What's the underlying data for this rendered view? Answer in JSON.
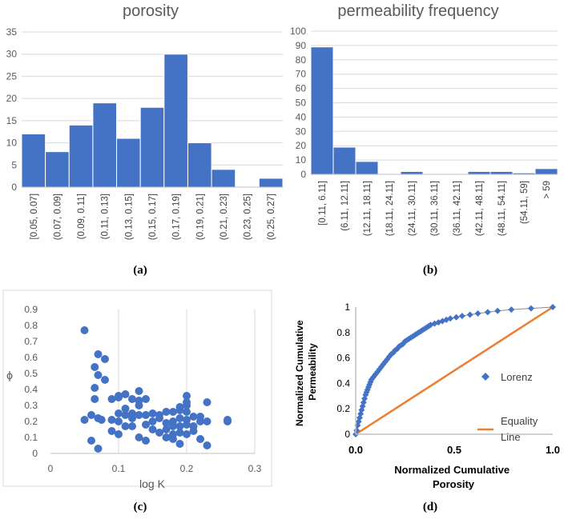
{
  "colors": {
    "bar": "#4472C4",
    "barEdge": "#ffffff",
    "axis": "#bfbfbf",
    "grid": "#d9d9d9",
    "text": "#404040",
    "muted": "#595959",
    "orange": "#ED7D31",
    "black": "#000000"
  },
  "captions": {
    "a": "(a)",
    "b": "(b)",
    "c": "(c)",
    "d": "(d)"
  },
  "chart_data": [
    {
      "id": "a",
      "type": "bar",
      "title": "porosity",
      "categories": [
        "[0.05, 0.07]",
        "(0.07, 0.09]",
        "(0.09, 0.11]",
        "(0.11, 0.13]",
        "(0.13, 0.15]",
        "(0.15, 0.17]",
        "(0.17, 0.19]",
        "(0.19, 0.21]",
        "(0.21, 0.23]",
        "(0.23, 0.25]",
        "(0.25, 0.27]"
      ],
      "values": [
        12,
        8,
        14,
        19,
        11,
        18,
        30,
        10,
        4,
        0,
        2
      ],
      "ylim": [
        0,
        35
      ],
      "yticks": [
        "0",
        "5",
        "10",
        "15",
        "20",
        "25",
        "30",
        "35"
      ]
    },
    {
      "id": "b",
      "type": "bar",
      "title": "permeability frequency",
      "categories": [
        "[0.11, 6.11]",
        "(6.11, 12.11]",
        "(12.11, 18.11]",
        "(18.11, 24.11]",
        "(24.11, 30.11]",
        "(30.11, 36.11]",
        "(36.11, 42.11]",
        "(42.11, 48.11]",
        "(48.11, 54.11]",
        "(54.11, 59]",
        "> 59"
      ],
      "values": [
        89,
        19,
        9,
        0,
        2,
        0,
        0,
        2,
        2,
        1,
        4
      ],
      "ylim": [
        0,
        100
      ],
      "yticks": [
        "0",
        "10",
        "20",
        "30",
        "40",
        "50",
        "60",
        "70",
        "80",
        "90",
        "100"
      ]
    },
    {
      "id": "c",
      "type": "scatter",
      "xlabel": "log K",
      "ylabel": "ϕ",
      "xlim": [
        0,
        0.3
      ],
      "ylim": [
        0,
        0.9
      ],
      "xticks": [
        "0",
        "0.1",
        "0.2",
        "0.3"
      ],
      "yticks": [
        "0",
        "0.1",
        "0.2",
        "0.3",
        "0.4",
        "0.5",
        "0.6",
        "0.7",
        "0.8",
        "0.9"
      ],
      "points": [
        [
          0.05,
          0.77
        ],
        [
          0.07,
          0.62
        ],
        [
          0.08,
          0.59
        ],
        [
          0.065,
          0.54
        ],
        [
          0.07,
          0.49
        ],
        [
          0.08,
          0.46
        ],
        [
          0.065,
          0.41
        ],
        [
          0.065,
          0.34
        ],
        [
          0.05,
          0.21
        ],
        [
          0.06,
          0.08
        ],
        [
          0.07,
          0.03
        ],
        [
          0.06,
          0.24
        ],
        [
          0.07,
          0.22
        ],
        [
          0.075,
          0.21
        ],
        [
          0.09,
          0.34
        ],
        [
          0.1,
          0.35
        ],
        [
          0.1,
          0.36
        ],
        [
          0.11,
          0.37
        ],
        [
          0.12,
          0.34
        ],
        [
          0.13,
          0.39
        ],
        [
          0.14,
          0.34
        ],
        [
          0.13,
          0.33
        ],
        [
          0.09,
          0.21
        ],
        [
          0.09,
          0.14
        ],
        [
          0.1,
          0.12
        ],
        [
          0.1,
          0.2
        ],
        [
          0.1,
          0.25
        ],
        [
          0.11,
          0.24
        ],
        [
          0.11,
          0.17
        ],
        [
          0.11,
          0.28
        ],
        [
          0.12,
          0.17
        ],
        [
          0.12,
          0.22
        ],
        [
          0.12,
          0.25
        ],
        [
          0.13,
          0.24
        ],
        [
          0.13,
          0.3
        ],
        [
          0.13,
          0.1
        ],
        [
          0.14,
          0.08
        ],
        [
          0.14,
          0.24
        ],
        [
          0.14,
          0.18
        ],
        [
          0.15,
          0.2
        ],
        [
          0.15,
          0.15
        ],
        [
          0.16,
          0.24
        ],
        [
          0.16,
          0.22
        ],
        [
          0.17,
          0.26
        ],
        [
          0.17,
          0.19
        ],
        [
          0.17,
          0.15
        ],
        [
          0.17,
          0.1
        ],
        [
          0.18,
          0.26
        ],
        [
          0.18,
          0.2
        ],
        [
          0.18,
          0.12
        ],
        [
          0.18,
          0.09
        ],
        [
          0.19,
          0.29
        ],
        [
          0.19,
          0.22
        ],
        [
          0.19,
          0.17
        ],
        [
          0.19,
          0.13
        ],
        [
          0.19,
          0.06
        ],
        [
          0.19,
          0.27
        ],
        [
          0.2,
          0.26
        ],
        [
          0.2,
          0.21
        ],
        [
          0.2,
          0.18
        ],
        [
          0.2,
          0.12
        ],
        [
          0.2,
          0.36
        ],
        [
          0.2,
          0.32
        ],
        [
          0.2,
          0.3
        ],
        [
          0.21,
          0.23
        ],
        [
          0.21,
          0.17
        ],
        [
          0.21,
          0.14
        ],
        [
          0.22,
          0.23
        ],
        [
          0.22,
          0.09
        ],
        [
          0.22,
          0.2
        ],
        [
          0.23,
          0.2
        ],
        [
          0.23,
          0.32
        ],
        [
          0.23,
          0.05
        ],
        [
          0.26,
          0.2
        ],
        [
          0.26,
          0.21
        ],
        [
          0.15,
          0.25
        ],
        [
          0.16,
          0.13
        ],
        [
          0.18,
          0.17
        ]
      ]
    },
    {
      "id": "d",
      "type": "line",
      "xlabel": "Normalized Cumulative Porosity",
      "ylabel": "Normalized Cumulative Permeability",
      "xlim": [
        0,
        1
      ],
      "ylim": [
        0,
        1
      ],
      "xticks": [
        "0.0",
        "0.5",
        "1.0"
      ],
      "yticks": [
        "0",
        "0.2",
        "0.4",
        "0.6",
        "0.8",
        "1"
      ],
      "series": [
        {
          "name": "Lorenz",
          "points": [
            [
              0,
              0
            ],
            [
              0.005,
              0.03
            ],
            [
              0.01,
              0.07
            ],
            [
              0.015,
              0.1
            ],
            [
              0.02,
              0.13
            ],
            [
              0.025,
              0.16
            ],
            [
              0.03,
              0.19
            ],
            [
              0.035,
              0.22
            ],
            [
              0.04,
              0.25
            ],
            [
              0.045,
              0.28
            ],
            [
              0.05,
              0.31
            ],
            [
              0.055,
              0.33
            ],
            [
              0.06,
              0.35
            ],
            [
              0.065,
              0.37
            ],
            [
              0.07,
              0.39
            ],
            [
              0.075,
              0.41
            ],
            [
              0.08,
              0.43
            ],
            [
              0.09,
              0.45
            ],
            [
              0.1,
              0.47
            ],
            [
              0.11,
              0.49
            ],
            [
              0.12,
              0.51
            ],
            [
              0.13,
              0.53
            ],
            [
              0.14,
              0.55
            ],
            [
              0.15,
              0.57
            ],
            [
              0.16,
              0.59
            ],
            [
              0.17,
              0.61
            ],
            [
              0.18,
              0.63
            ],
            [
              0.19,
              0.64
            ],
            [
              0.2,
              0.66
            ],
            [
              0.21,
              0.67
            ],
            [
              0.22,
              0.69
            ],
            [
              0.23,
              0.7
            ],
            [
              0.24,
              0.71
            ],
            [
              0.25,
              0.73
            ],
            [
              0.26,
              0.74
            ],
            [
              0.27,
              0.75
            ],
            [
              0.28,
              0.76
            ],
            [
              0.29,
              0.77
            ],
            [
              0.3,
              0.78
            ],
            [
              0.31,
              0.79
            ],
            [
              0.32,
              0.8
            ],
            [
              0.33,
              0.81
            ],
            [
              0.34,
              0.82
            ],
            [
              0.35,
              0.83
            ],
            [
              0.36,
              0.84
            ],
            [
              0.37,
              0.85
            ],
            [
              0.38,
              0.86
            ],
            [
              0.4,
              0.87
            ],
            [
              0.42,
              0.88
            ],
            [
              0.44,
              0.89
            ],
            [
              0.46,
              0.9
            ],
            [
              0.48,
              0.91
            ],
            [
              0.51,
              0.92
            ],
            [
              0.54,
              0.93
            ],
            [
              0.58,
              0.94
            ],
            [
              0.62,
              0.95
            ],
            [
              0.67,
              0.96
            ],
            [
              0.72,
              0.97
            ],
            [
              0.79,
              0.98
            ],
            [
              0.89,
              0.99
            ],
            [
              1,
              1
            ]
          ]
        },
        {
          "name": "Equality Line",
          "points": [
            [
              0,
              0
            ],
            [
              1,
              1
            ]
          ]
        }
      ]
    }
  ]
}
